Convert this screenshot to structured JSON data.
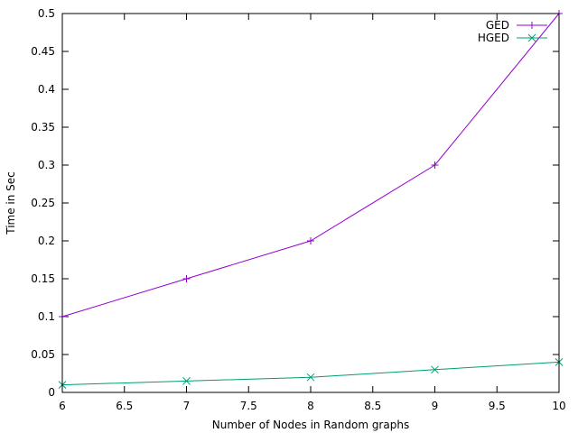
{
  "chart_data": {
    "type": "line",
    "title": "",
    "xlabel": "Number of Nodes in Random graphs",
    "ylabel": "Time in Sec",
    "xlim": [
      6,
      10
    ],
    "ylim": [
      0,
      0.5
    ],
    "xticks": [
      "6",
      "6.5",
      "7",
      "7.5",
      "8",
      "8.5",
      "9",
      "9.5",
      "10"
    ],
    "yticks": [
      "0",
      "0.05",
      "0.1",
      "0.15",
      "0.2",
      "0.25",
      "0.3",
      "0.35",
      "0.4",
      "0.45",
      "0.5"
    ],
    "grid": false,
    "legend_position": "top-right",
    "x": [
      6,
      7,
      8,
      9,
      10
    ],
    "series": [
      {
        "name": "GED",
        "values": [
          0.1,
          0.15,
          0.2,
          0.3,
          0.5
        ],
        "color": "#9400d3",
        "marker": "plus"
      },
      {
        "name": "HGED",
        "values": [
          0.01,
          0.015,
          0.02,
          0.03,
          0.04
        ],
        "color": "#009e73",
        "marker": "cross"
      }
    ]
  }
}
